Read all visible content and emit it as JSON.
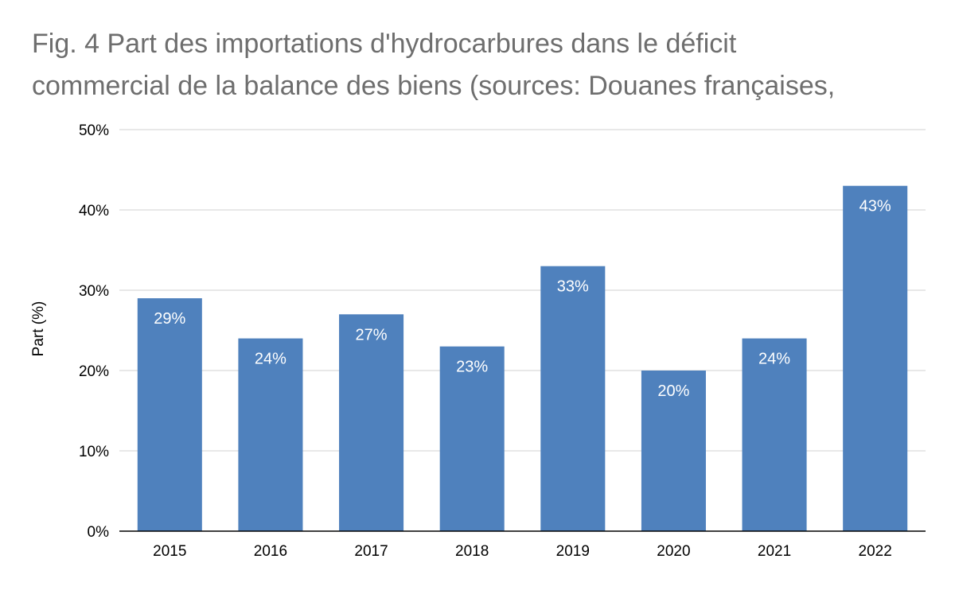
{
  "chart_data": {
    "type": "bar",
    "title_lines": [
      "Fig. 4 Part des importations d'hydrocarbures dans le déficit",
      "commercial de la balance des biens (sources: Douanes françaises,"
    ],
    "categories": [
      "2015",
      "2016",
      "2017",
      "2018",
      "2019",
      "2020",
      "2021",
      "2022"
    ],
    "values": [
      29,
      24,
      27,
      23,
      33,
      20,
      24,
      43
    ],
    "value_labels": [
      "29%",
      "24%",
      "27%",
      "23%",
      "33%",
      "20%",
      "24%",
      "43%"
    ],
    "ylabel": "Part (%)",
    "xlabel": "",
    "ylim": [
      0,
      50
    ],
    "yticks": [
      0,
      10,
      20,
      30,
      40,
      50
    ],
    "ytick_labels": [
      "0%",
      "10%",
      "20%",
      "30%",
      "40%",
      "50%"
    ],
    "grid": true,
    "legend": "none",
    "colors": {
      "bar": "#4f81bd",
      "grid": "#d9d9d9",
      "axis": "#000000",
      "title": "#6e6e6e",
      "data_label": "#ffffff"
    }
  }
}
